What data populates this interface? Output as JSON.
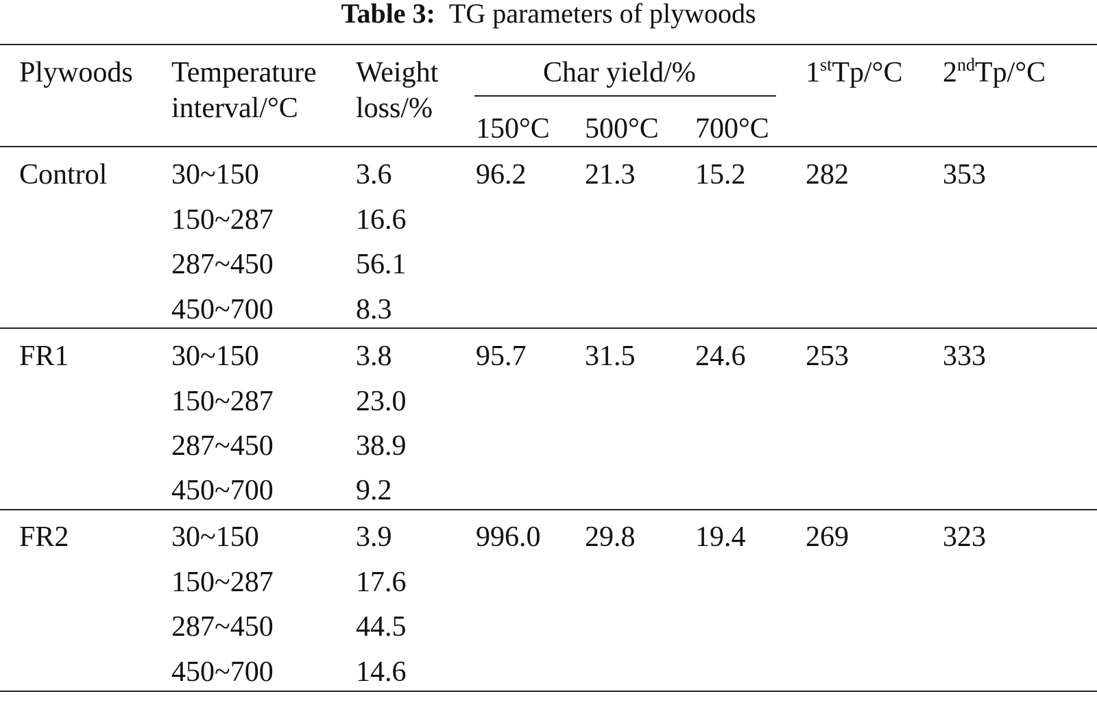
{
  "caption": {
    "label": "Table 3:",
    "text": "TG parameters of plywoods"
  },
  "headers": {
    "plywoods": "Plywoods",
    "temperature_line1": "Temperature",
    "temperature_line2": "interval/°C",
    "weight_line1": "Weight",
    "weight_line2": "loss/%",
    "char_yield": "Char yield/%",
    "char_150": "150°C",
    "char_500": "500°C",
    "char_700": "700°C",
    "tp1_num": "1",
    "tp1_sup": "st",
    "tp1_rest": "Tp/°C",
    "tp2_num": "2",
    "tp2_sup": "nd",
    "tp2_rest": "Tp/°C"
  },
  "groups": [
    {
      "name": "Control",
      "intervals": [
        "30~150",
        "150~287",
        "287~450",
        "450~700"
      ],
      "weight_loss": [
        "3.6",
        "16.6",
        "56.1",
        "8.3"
      ],
      "char_150": "96.2",
      "char_500": "21.3",
      "char_700": "15.2",
      "tp1": "282",
      "tp2": "353"
    },
    {
      "name": "FR1",
      "intervals": [
        "30~150",
        "150~287",
        "287~450",
        "450~700"
      ],
      "weight_loss": [
        "3.8",
        "23.0",
        "38.9",
        "9.2"
      ],
      "char_150": "95.7",
      "char_500": "31.5",
      "char_700": "24.6",
      "tp1": "253",
      "tp2": "333"
    },
    {
      "name": "FR2",
      "intervals": [
        "30~150",
        "150~287",
        "287~450",
        "450~700"
      ],
      "weight_loss": [
        "3.9",
        "17.6",
        "44.5",
        "14.6"
      ],
      "char_150": "996.0",
      "char_500": "29.8",
      "char_700": "19.4",
      "tp1": "269",
      "tp2": "323"
    }
  ]
}
